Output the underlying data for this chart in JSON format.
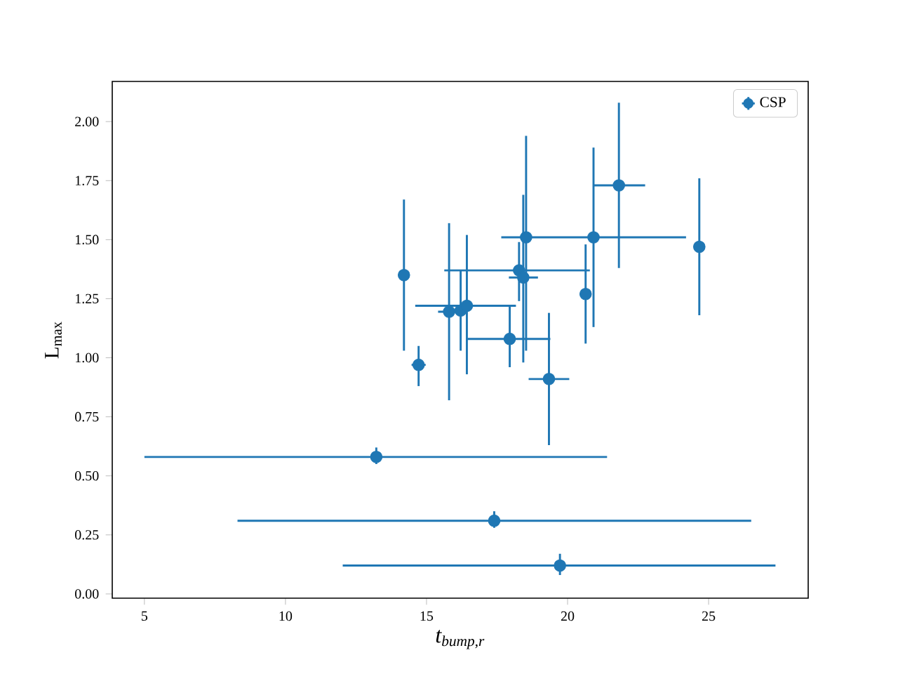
{
  "chart_data": {
    "type": "scatter",
    "xlabel": "t$_{bump,r}$",
    "ylabel": "L$_{max}$",
    "x": [
      14.2,
      14.72,
      15.8,
      16.21,
      16.43,
      17.95,
      18.28,
      18.43,
      18.53,
      19.34,
      20.64,
      20.92,
      21.82,
      24.67,
      13.22,
      17.4,
      19.73
    ],
    "series": [
      {
        "name": "CSP",
        "color": "#1f77b4",
        "values": [
          1.35,
          0.97,
          1.195,
          1.2,
          1.22,
          1.08,
          1.37,
          1.34,
          1.51,
          0.91,
          1.27,
          1.51,
          1.73,
          1.47,
          0.58,
          0.31,
          0.12
        ],
        "errors": [
          [
            1.03,
            1.67
          ],
          [
            0.88,
            1.05
          ],
          [
            0.82,
            1.57
          ],
          [
            1.03,
            1.37
          ],
          [
            0.93,
            1.52
          ],
          [
            0.96,
            1.22
          ],
          [
            1.24,
            1.49
          ],
          [
            0.98,
            1.69
          ],
          [
            1.03,
            1.94
          ],
          [
            0.63,
            1.19
          ],
          [
            1.06,
            1.48
          ],
          [
            1.13,
            1.89
          ],
          [
            1.38,
            2.08
          ],
          [
            1.18,
            1.76
          ],
          [
            0.55,
            0.62
          ],
          [
            0.28,
            0.35
          ],
          [
            0.08,
            0.17
          ]
        ],
        "xerrors": [
          null,
          [
            14.47,
            14.97
          ],
          [
            15.41,
            16.21
          ],
          null,
          [
            14.6,
            18.17
          ],
          [
            16.43,
            19.39
          ],
          [
            15.63,
            20.79
          ],
          [
            17.92,
            18.95
          ],
          [
            17.65,
            24.2
          ],
          [
            18.62,
            20.06
          ],
          null,
          null,
          [
            20.92,
            22.75
          ],
          null,
          [
            5.0,
            21.4
          ],
          [
            8.3,
            26.51
          ],
          [
            12.03,
            27.37
          ]
        ]
      }
    ],
    "xlim": [
      3.86,
      28.53
    ],
    "ylim": [
      -0.018,
      2.17
    ],
    "xticks": [
      5,
      10,
      15,
      20,
      25
    ],
    "yticks": [
      {
        "value": 0,
        "label": "0.00"
      },
      {
        "value": 0.25,
        "label": "0.25"
      },
      {
        "value": 0.5,
        "label": "0.50"
      },
      {
        "value": 0.75,
        "label": "0.75"
      },
      {
        "value": 1.0,
        "label": "1.00"
      },
      {
        "value": 1.25,
        "label": "1.25"
      },
      {
        "value": 1.5,
        "label": "1.50"
      },
      {
        "value": 1.75,
        "label": "1.75"
      },
      {
        "value": 2.0,
        "label": "2.00"
      }
    ],
    "marker": "circle",
    "legend": "top right"
  }
}
